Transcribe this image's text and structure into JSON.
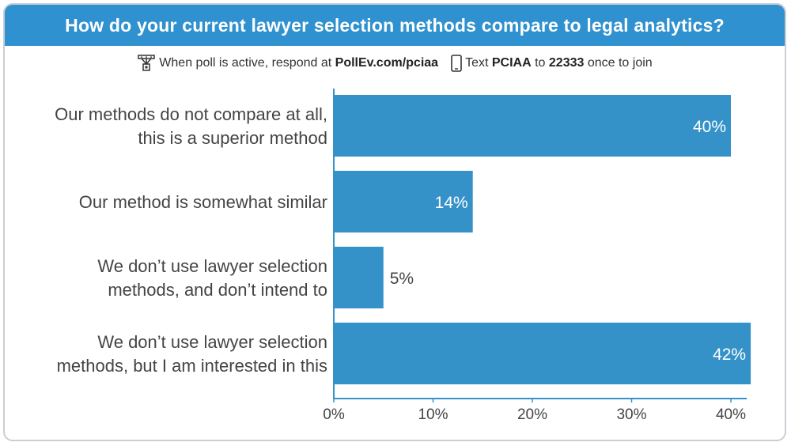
{
  "title": "How do your current lawyer selection methods compare to legal analytics?",
  "instructions": {
    "web_prefix": "When poll is active, respond at",
    "web_url": "PollEv.com/pciaa",
    "text_prefix": "Text",
    "text_code": "PCIAA",
    "text_to": "to",
    "text_number": "22333",
    "text_suffix": "once to join",
    "web_icon": "web-poll-icon",
    "phone_icon": "phone-icon"
  },
  "colors": {
    "header": "#2f91cf",
    "bar": "#3592c9",
    "inside_label": "#ffffff",
    "outside_label": "#444444",
    "axis": "#3592c9"
  },
  "chart_data": {
    "type": "bar",
    "orientation": "horizontal",
    "categories": [
      [
        "Our methods do not compare at all,",
        "this is a superior method"
      ],
      [
        "Our method is somewhat similar"
      ],
      [
        "We don’t use lawyer selection",
        "methods, and don’t intend to"
      ],
      [
        "We don’t use lawyer selection",
        "methods, but I am interested in this"
      ]
    ],
    "values": [
      40,
      14,
      5,
      42
    ],
    "value_labels": [
      "40%",
      "14%",
      "5%",
      "42%"
    ],
    "xlim": [
      0,
      42
    ],
    "xticks": [
      0,
      10,
      20,
      30,
      40
    ],
    "xtick_labels": [
      "0%",
      "10%",
      "20%",
      "30%",
      "40%"
    ],
    "grid": false,
    "legend": "none"
  }
}
